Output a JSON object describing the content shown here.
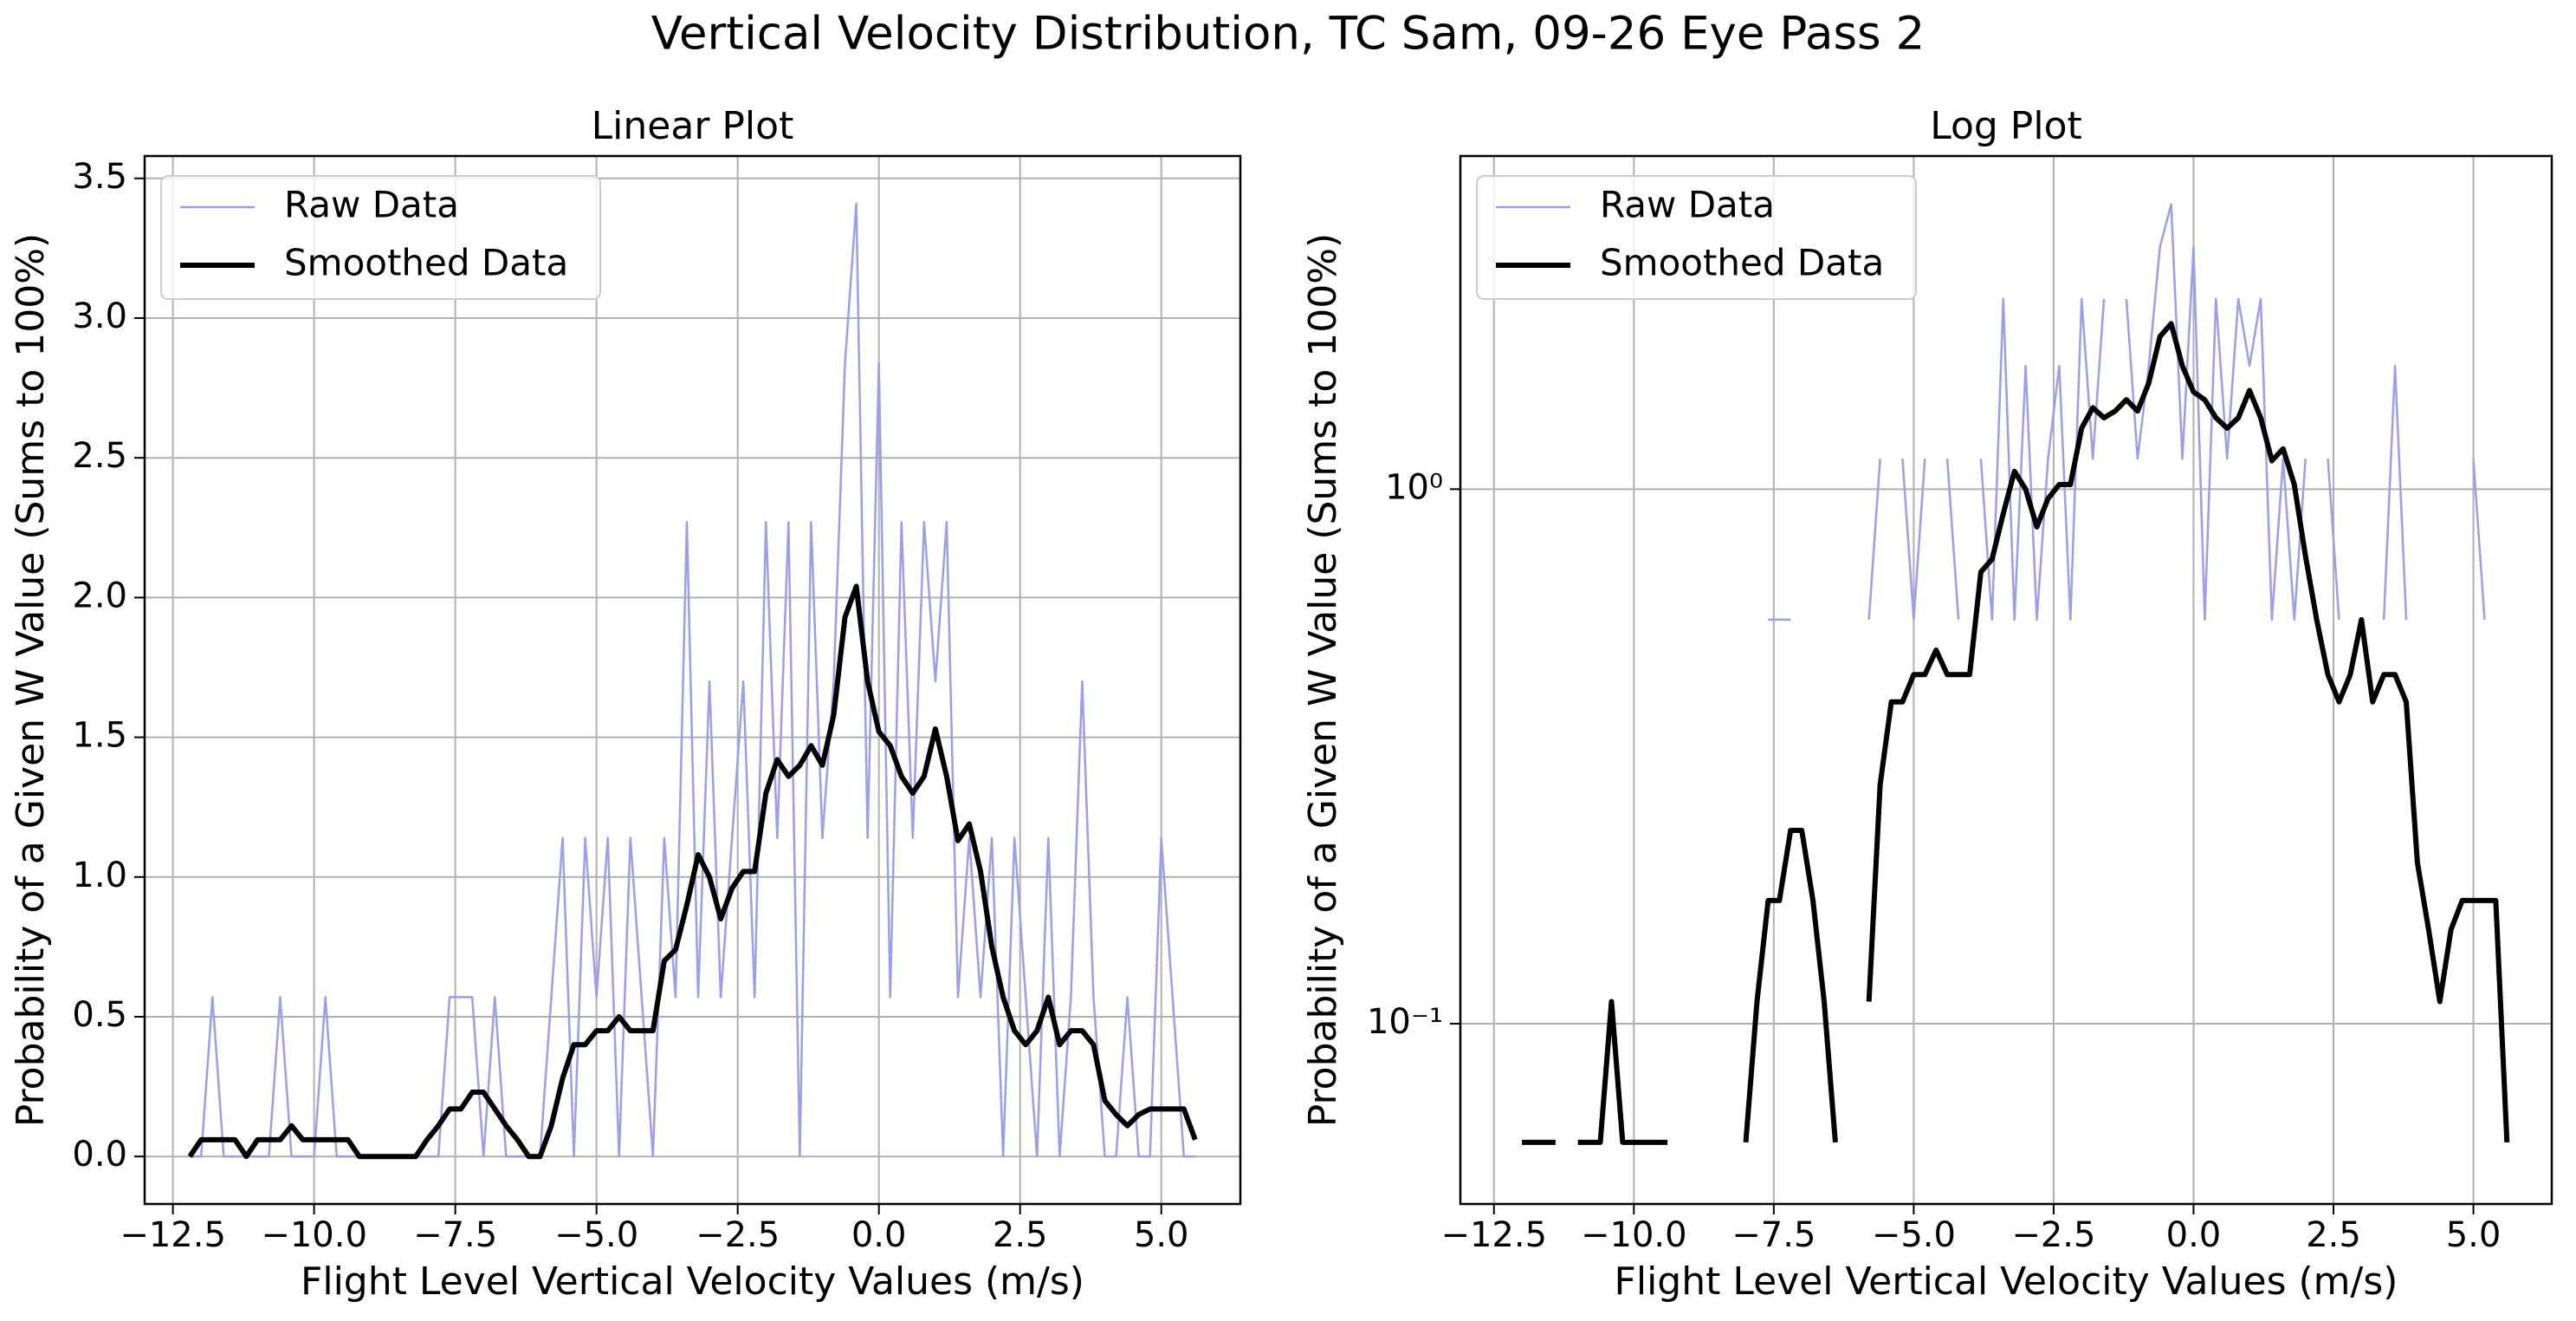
{
  "figure_title": "Vertical Velocity Distribution, TC Sam, 09-26 Eye Pass 2",
  "chart_data": [
    {
      "type": "line",
      "title": "Linear Plot",
      "x_label": "Flight Level Vertical Velocity Values (m/s)",
      "y_label": "Probability of a Given W Value (Sums to 100%)",
      "log_scale": false,
      "grid": true,
      "legend": "upper left",
      "xlim": [
        -13.0,
        6.4
      ],
      "ylim": [
        -0.17,
        3.58
      ],
      "xticks": [
        {
          "value": -12.5,
          "label": "−12.5"
        },
        {
          "value": -10.0,
          "label": "−10.0"
        },
        {
          "value": -7.5,
          "label": "−7.5"
        },
        {
          "value": -5.0,
          "label": "−5.0"
        },
        {
          "value": -2.5,
          "label": "−2.5"
        },
        {
          "value": 0,
          "label": "0.0"
        },
        {
          "value": 2.5,
          "label": "2.5"
        },
        {
          "value": 5.0,
          "label": "5.0"
        }
      ],
      "yticks": [
        {
          "value": 0,
          "label": "0.0"
        },
        0.5,
        {
          "value": 1,
          "label": "1.0"
        },
        1.5,
        {
          "value": 2,
          "label": "2.0"
        },
        2.5,
        {
          "value": 3,
          "label": "3.0"
        },
        3.5
      ],
      "x": [
        -12.2,
        -12.0,
        -11.8,
        -11.6,
        -11.4,
        -11.2,
        -11.0,
        -10.8,
        -10.6,
        -10.4,
        -10.2,
        -10.0,
        -9.8,
        -9.6,
        -9.4,
        -9.2,
        -9.0,
        -8.8,
        -8.6,
        -8.4,
        -8.2,
        -8.0,
        -7.8,
        -7.6,
        -7.4,
        -7.2,
        -7.0,
        -6.8,
        -6.6,
        -6.4,
        -6.2,
        -6.0,
        -5.8,
        -5.6,
        -5.4,
        -5.2,
        -5.0,
        -4.8,
        -4.6,
        -4.4,
        -4.2,
        -4.0,
        -3.8,
        -3.6,
        -3.4,
        -3.2,
        -3.0,
        -2.8,
        -2.6,
        -2.4,
        -2.2,
        -2.0,
        -1.8,
        -1.6,
        -1.4,
        -1.2,
        -1.0,
        -0.8,
        -0.6,
        -0.4,
        -0.2,
        0.0,
        0.2,
        0.4,
        0.6,
        0.8,
        1.0,
        1.2,
        1.4,
        1.6,
        1.8,
        2.0,
        2.2,
        2.4,
        2.6,
        2.8,
        3.0,
        3.2,
        3.4,
        3.6,
        3.8,
        4.0,
        4.2,
        4.4,
        4.6,
        4.8,
        5.0,
        5.2,
        5.4,
        5.6
      ],
      "series": [
        {
          "name": "Raw Data",
          "color": "#9c9cf0",
          "values": [
            0,
            0,
            0.57,
            0,
            0,
            0,
            0,
            0,
            0.57,
            0,
            0,
            0,
            0.57,
            0,
            0,
            0,
            0,
            0,
            0,
            0,
            0,
            0,
            0,
            0.57,
            0.57,
            0.57,
            0,
            0.57,
            0,
            0,
            0,
            0,
            0.57,
            1.14,
            0,
            1.14,
            0.57,
            1.14,
            0,
            1.14,
            0.57,
            0,
            1.14,
            0.57,
            2.27,
            0.57,
            1.7,
            0.57,
            1.14,
            1.7,
            0.57,
            2.27,
            1.14,
            2.27,
            0,
            2.27,
            1.14,
            1.7,
            2.84,
            3.41,
            1.14,
            2.84,
            0.57,
            2.27,
            1.14,
            2.27,
            1.7,
            2.27,
            0.57,
            1.14,
            0.57,
            1.14,
            0,
            1.14,
            0.57,
            0,
            1.14,
            0,
            0.57,
            1.7,
            0.57,
            0,
            0,
            0.57,
            0,
            0,
            1.14,
            0.57,
            0,
            0
          ]
        },
        {
          "name": "Smoothed Data",
          "color": "#000000",
          "values": [
            0,
            0.06,
            0.06,
            0.06,
            0.06,
            0,
            0.06,
            0.06,
            0.06,
            0.11,
            0.06,
            0.06,
            0.06,
            0.06,
            0.06,
            0,
            0,
            0,
            0,
            0,
            0,
            0.06,
            0.11,
            0.17,
            0.17,
            0.23,
            0.23,
            0.17,
            0.11,
            0.06,
            0,
            0,
            0.11,
            0.28,
            0.4,
            0.4,
            0.45,
            0.45,
            0.5,
            0.45,
            0.45,
            0.45,
            0.7,
            0.74,
            0.9,
            1.08,
            1.0,
            0.85,
            0.96,
            1.02,
            1.02,
            1.3,
            1.42,
            1.36,
            1.4,
            1.47,
            1.4,
            1.58,
            1.93,
            2.04,
            1.7,
            1.52,
            1.47,
            1.36,
            1.3,
            1.36,
            1.53,
            1.36,
            1.13,
            1.19,
            1.02,
            0.75,
            0.57,
            0.45,
            0.4,
            0.45,
            0.57,
            0.4,
            0.45,
            0.45,
            0.4,
            0.2,
            0.15,
            0.11,
            0.15,
            0.17,
            0.17,
            0.17,
            0.17,
            0.06
          ]
        }
      ]
    },
    {
      "type": "line",
      "title": "Log Plot",
      "x_label": "Flight Level Vertical Velocity Values (m/s)",
      "y_label": "Probability of a Given W Value (Sums to 100%)",
      "log_scale": true,
      "grid": true,
      "legend": "upper left",
      "xlim": [
        -13.1,
        6.4
      ],
      "ylim": [
        0.046,
        4.2
      ],
      "xticks": [
        {
          "value": -12.5,
          "label": "−12.5"
        },
        {
          "value": -10.0,
          "label": "−10.0"
        },
        {
          "value": -7.5,
          "label": "−7.5"
        },
        {
          "value": -5.0,
          "label": "−5.0"
        },
        {
          "value": -2.5,
          "label": "−2.5"
        },
        {
          "value": 0,
          "label": "0.0"
        },
        {
          "value": 2.5,
          "label": "2.5"
        },
        {
          "value": 5.0,
          "label": "5.0"
        }
      ],
      "yticks": [
        {
          "value": 0.1,
          "label": "10⁻¹"
        },
        {
          "value": 1,
          "label": "10⁰"
        }
      ],
      "x": [
        -12.2,
        -12.0,
        -11.8,
        -11.6,
        -11.4,
        -11.2,
        -11.0,
        -10.8,
        -10.6,
        -10.4,
        -10.2,
        -10.0,
        -9.8,
        -9.6,
        -9.4,
        -9.2,
        -9.0,
        -8.8,
        -8.6,
        -8.4,
        -8.2,
        -8.0,
        -7.8,
        -7.6,
        -7.4,
        -7.2,
        -7.0,
        -6.8,
        -6.6,
        -6.4,
        -6.2,
        -6.0,
        -5.8,
        -5.6,
        -5.4,
        -5.2,
        -5.0,
        -4.8,
        -4.6,
        -4.4,
        -4.2,
        -4.0,
        -3.8,
        -3.6,
        -3.4,
        -3.2,
        -3.0,
        -2.8,
        -2.6,
        -2.4,
        -2.2,
        -2.0,
        -1.8,
        -1.6,
        -1.4,
        -1.2,
        -1.0,
        -0.8,
        -0.6,
        -0.4,
        -0.2,
        0.0,
        0.2,
        0.4,
        0.6,
        0.8,
        1.0,
        1.2,
        1.4,
        1.6,
        1.8,
        2.0,
        2.2,
        2.4,
        2.6,
        2.8,
        3.0,
        3.2,
        3.4,
        3.6,
        3.8,
        4.0,
        4.2,
        4.4,
        4.6,
        4.8,
        5.0,
        5.2,
        5.4,
        5.6
      ],
      "series": [
        {
          "name": "Raw Data",
          "color": "#9c9cf0",
          "values": [
            null,
            null,
            0.57,
            null,
            null,
            null,
            null,
            null,
            0.57,
            null,
            null,
            null,
            0.57,
            null,
            null,
            null,
            null,
            null,
            null,
            null,
            null,
            null,
            null,
            0.57,
            0.57,
            0.57,
            null,
            0.57,
            null,
            null,
            null,
            null,
            0.57,
            1.14,
            null,
            1.14,
            0.57,
            1.14,
            null,
            1.14,
            0.57,
            null,
            1.14,
            0.57,
            2.27,
            0.57,
            1.7,
            0.57,
            1.14,
            1.7,
            0.57,
            2.27,
            1.14,
            2.27,
            null,
            2.27,
            1.14,
            1.7,
            2.84,
            3.41,
            1.14,
            2.84,
            0.57,
            2.27,
            1.14,
            2.27,
            1.7,
            2.27,
            0.57,
            1.14,
            0.57,
            1.14,
            null,
            1.14,
            0.57,
            null,
            1.14,
            null,
            0.57,
            1.7,
            0.57,
            null,
            null,
            0.57,
            null,
            null,
            1.14,
            0.57,
            null,
            null
          ]
        },
        {
          "name": "Smoothed Data",
          "color": "#000000",
          "values": [
            null,
            0.06,
            0.06,
            0.06,
            0.06,
            null,
            0.06,
            0.06,
            0.06,
            0.11,
            0.06,
            0.06,
            0.06,
            0.06,
            0.06,
            null,
            null,
            null,
            null,
            null,
            null,
            0.06,
            0.11,
            0.17,
            0.17,
            0.23,
            0.23,
            0.17,
            0.11,
            0.06,
            null,
            null,
            0.11,
            0.28,
            0.4,
            0.4,
            0.45,
            0.45,
            0.5,
            0.45,
            0.45,
            0.45,
            0.7,
            0.74,
            0.9,
            1.08,
            1.0,
            0.85,
            0.96,
            1.02,
            1.02,
            1.3,
            1.42,
            1.36,
            1.4,
            1.47,
            1.4,
            1.58,
            1.93,
            2.04,
            1.7,
            1.52,
            1.47,
            1.36,
            1.3,
            1.36,
            1.53,
            1.36,
            1.13,
            1.19,
            1.02,
            0.75,
            0.57,
            0.45,
            0.4,
            0.45,
            0.57,
            0.4,
            0.45,
            0.45,
            0.4,
            0.2,
            0.15,
            0.11,
            0.15,
            0.17,
            0.17,
            0.17,
            0.17,
            0.06
          ]
        }
      ]
    }
  ]
}
